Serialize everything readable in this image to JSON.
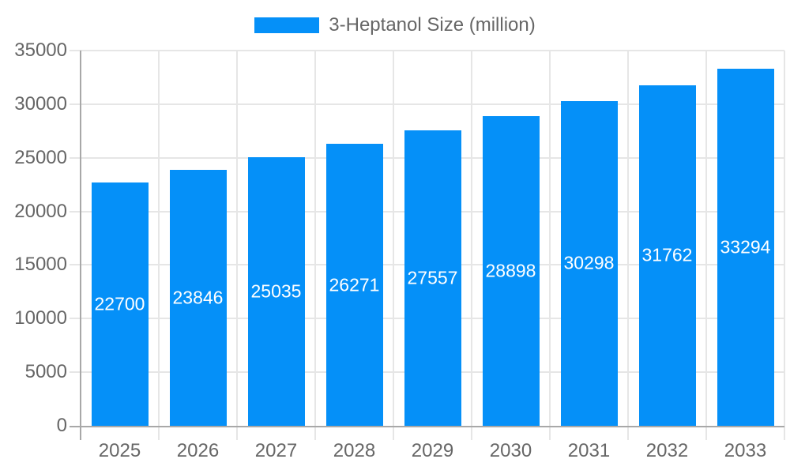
{
  "chart_data": {
    "type": "bar",
    "legend": "3-Heptanol Size (million)",
    "legend_position": "top",
    "categories": [
      "2025",
      "2026",
      "2027",
      "2028",
      "2029",
      "2030",
      "2031",
      "2032",
      "2033"
    ],
    "values": [
      22700,
      23846,
      25035,
      26271,
      27557,
      28898,
      30298,
      31762,
      33294
    ],
    "series": [
      {
        "name": "3-Heptanol Size (million)",
        "values": [
          22700,
          23846,
          25035,
          26271,
          27557,
          28898,
          30298,
          31762,
          33294
        ]
      }
    ],
    "bar_labels_visible": true,
    "xlabel": "",
    "ylabel": "",
    "ylim": [
      0,
      35000
    ],
    "ytick_step": 5000,
    "ytick_labels": [
      "0",
      "5000",
      "10000",
      "15000",
      "20000",
      "25000",
      "30000",
      "35000"
    ],
    "grid": true,
    "colors": {
      "bar": "#0590f8",
      "grid": "#e6e6e6",
      "axis": "#a8a8a8",
      "tick_text": "#666666",
      "legend_text": "#666666",
      "bar_label_text": "#ffffff",
      "background": "#ffffff"
    }
  }
}
